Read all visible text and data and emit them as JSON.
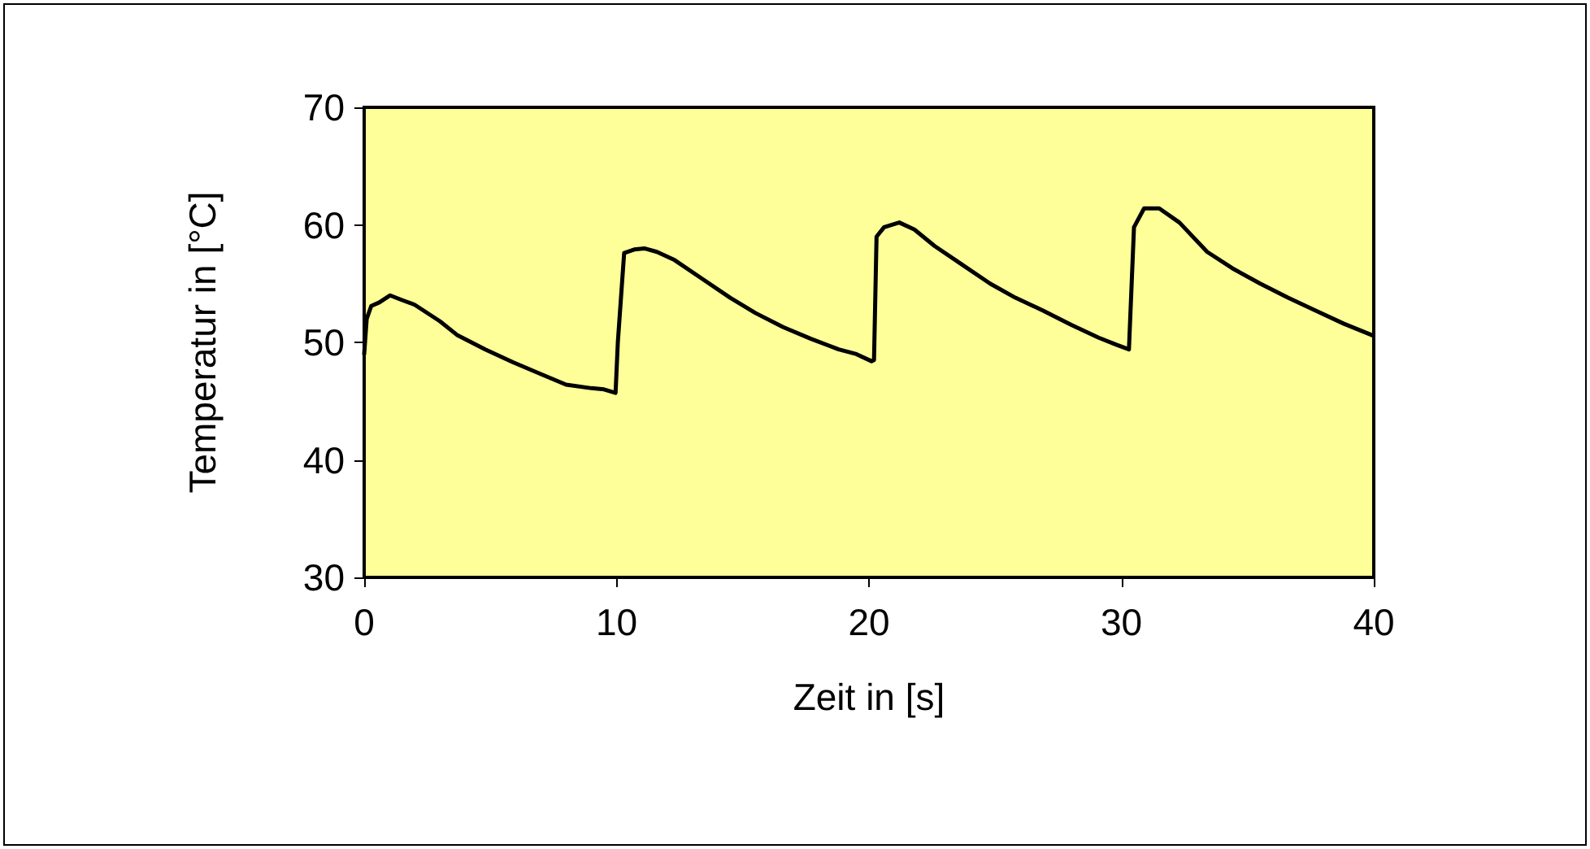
{
  "chart_data": {
    "type": "line",
    "xlabel": "Zeit in [s]",
    "ylabel": "Temperatur in [°C]",
    "xlim": [
      0,
      40
    ],
    "xticks": [
      0,
      10,
      20,
      30,
      40
    ],
    "ylim": [
      30,
      70
    ],
    "yticks": [
      30,
      40,
      50,
      60,
      70
    ],
    "marker": "none",
    "line_style": "solid",
    "series": [
      {
        "color": "#000000",
        "x": [
          0,
          0.1,
          0.28,
          0.6,
          1.03,
          1.5,
          2.0,
          3.0,
          3.7,
          4.8,
          5.9,
          7.0,
          8.0,
          9.0,
          9.5,
          9.96,
          10.05,
          10.3,
          10.7,
          11.1,
          11.6,
          12.3,
          13.4,
          14.5,
          15.5,
          16.6,
          17.7,
          18.8,
          19.5,
          20.1,
          20.2,
          20.3,
          20.6,
          21.2,
          21.8,
          22.6,
          23.7,
          24.8,
          25.8,
          26.9,
          28.0,
          29.1,
          29.8,
          30.3,
          30.5,
          30.9,
          31.5,
          32.3,
          33.4,
          34.4,
          35.5,
          36.6,
          37.7,
          38.8,
          39.95
        ],
        "values": [
          49.0,
          52.0,
          53.1,
          53.4,
          54.0,
          53.6,
          53.2,
          51.8,
          50.6,
          49.4,
          48.3,
          47.3,
          46.4,
          46.1,
          46.0,
          45.7,
          50.0,
          57.6,
          57.9,
          58.0,
          57.7,
          57.0,
          55.4,
          53.8,
          52.5,
          51.3,
          50.3,
          49.4,
          49.0,
          48.4,
          48.5,
          59.0,
          59.8,
          60.2,
          59.6,
          58.2,
          56.6,
          55.0,
          53.8,
          52.7,
          51.5,
          50.4,
          49.8,
          49.4,
          59.8,
          61.4,
          61.4,
          60.2,
          57.7,
          56.3,
          55.0,
          53.8,
          52.7,
          51.6,
          50.6
        ]
      }
    ]
  }
}
